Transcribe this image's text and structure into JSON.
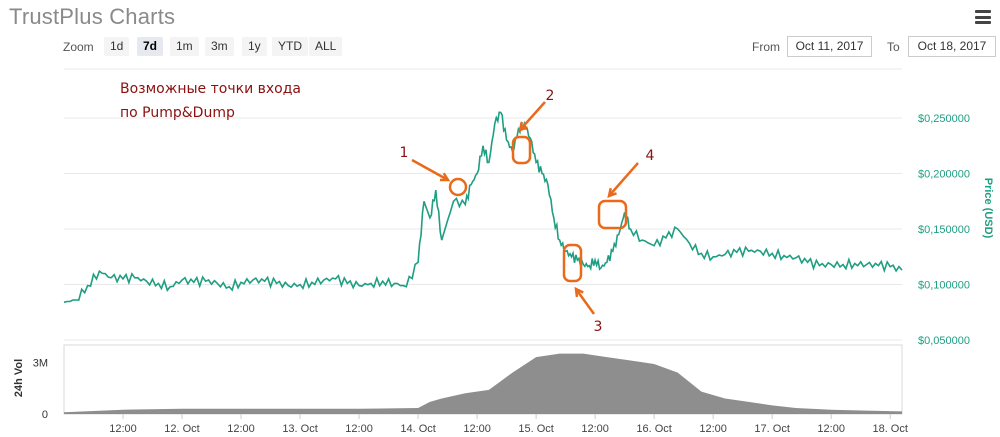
{
  "header": {
    "title": "TrustPlus Charts",
    "menu_icon": "hamburger-menu-icon"
  },
  "zoom": {
    "label": "Zoom",
    "options": [
      "1d",
      "7d",
      "1m",
      "3m",
      "1y",
      "YTD",
      "ALL"
    ],
    "selected": "7d"
  },
  "range": {
    "from_label": "From",
    "from_value": "Oct 11, 2017",
    "to_label": "To",
    "to_value": "Oct 18, 2017"
  },
  "annotation": {
    "line1": "Возможные точки входа",
    "line2": "по Pump&Dump",
    "markers": [
      "1",
      "2",
      "3",
      "4"
    ],
    "color": "#e86a1a"
  },
  "chart_data": {
    "type": "line",
    "price_axis": {
      "ylabel": "Price (USD)",
      "ticks": [
        "$0,050000",
        "$0,100000",
        "$0,150000",
        "$0,200000",
        "$0,250000"
      ],
      "ylim": [
        0.05,
        0.25
      ]
    },
    "volume_axis": {
      "ylabel": "24h Vol",
      "ticks": [
        "0",
        "3M"
      ]
    },
    "x_ticks": [
      "12:00",
      "12. Oct",
      "12:00",
      "13. Oct",
      "12:00",
      "14. Oct",
      "12:00",
      "15. Oct",
      "12:00",
      "16. Oct",
      "12:00",
      "17. Oct",
      "12:00",
      "18. Oct"
    ],
    "series": [
      {
        "name": "Price",
        "color": "#1f9e82",
        "x_days": [
          11.0,
          11.1,
          11.2,
          11.3,
          11.4,
          11.5,
          11.6,
          11.7,
          11.8,
          11.9,
          12.0,
          12.1,
          12.2,
          12.3,
          12.4,
          12.5,
          12.6,
          12.7,
          12.8,
          12.9,
          13.0,
          13.1,
          13.2,
          13.3,
          13.4,
          13.5,
          13.6,
          13.7,
          13.8,
          13.9,
          14.0,
          14.05,
          14.1,
          14.15,
          14.2,
          14.3,
          14.4,
          14.45,
          14.5,
          14.55,
          14.6,
          14.65,
          14.7,
          14.75,
          14.8,
          14.85,
          14.9,
          14.95,
          15.0,
          15.05,
          15.1,
          15.15,
          15.2,
          15.25,
          15.3,
          15.35,
          15.4,
          15.45,
          15.5,
          15.55,
          15.6,
          15.65,
          15.7,
          15.75,
          15.8,
          15.9,
          16.0,
          16.1,
          16.2,
          16.3,
          16.4,
          16.5,
          16.6,
          16.7,
          16.8,
          16.9,
          17.0,
          17.1,
          17.2,
          17.3,
          17.4,
          17.5,
          17.6,
          17.7,
          17.8,
          17.9,
          18.0,
          18.1
        ],
        "y": [
          0.084,
          0.086,
          0.099,
          0.112,
          0.106,
          0.105,
          0.106,
          0.103,
          0.101,
          0.098,
          0.104,
          0.102,
          0.103,
          0.101,
          0.098,
          0.102,
          0.104,
          0.103,
          0.101,
          0.099,
          0.1,
          0.102,
          0.104,
          0.105,
          0.101,
          0.099,
          0.101,
          0.103,
          0.101,
          0.098,
          0.12,
          0.175,
          0.16,
          0.185,
          0.14,
          0.175,
          0.172,
          0.19,
          0.2,
          0.225,
          0.21,
          0.245,
          0.255,
          0.23,
          0.22,
          0.24,
          0.245,
          0.232,
          0.21,
          0.2,
          0.19,
          0.16,
          0.14,
          0.13,
          0.125,
          0.122,
          0.118,
          0.117,
          0.122,
          0.115,
          0.12,
          0.13,
          0.145,
          0.165,
          0.15,
          0.14,
          0.135,
          0.142,
          0.15,
          0.137,
          0.128,
          0.125,
          0.127,
          0.129,
          0.13,
          0.13,
          0.128,
          0.126,
          0.124,
          0.12,
          0.117,
          0.118,
          0.118,
          0.119,
          0.118,
          0.117,
          0.116,
          0.113
        ]
      },
      {
        "name": "Volume",
        "color": "#7a7a7a",
        "x_days": [
          11.0,
          11.5,
          12.0,
          12.5,
          13.0,
          13.5,
          14.0,
          14.1,
          14.2,
          14.4,
          14.6,
          14.8,
          15.0,
          15.2,
          15.4,
          15.6,
          15.8,
          16.0,
          16.2,
          16.4,
          16.6,
          16.8,
          17.0,
          17.2,
          17.5,
          17.8,
          18.1
        ],
        "y_millions": [
          0.1,
          0.25,
          0.3,
          0.3,
          0.3,
          0.3,
          0.35,
          0.7,
          0.9,
          1.2,
          1.4,
          2.4,
          3.3,
          3.5,
          3.5,
          3.3,
          3.1,
          2.9,
          2.4,
          1.3,
          0.9,
          0.7,
          0.5,
          0.35,
          0.25,
          0.2,
          0.15
        ],
        "ylim": [
          0,
          4
        ]
      }
    ]
  }
}
